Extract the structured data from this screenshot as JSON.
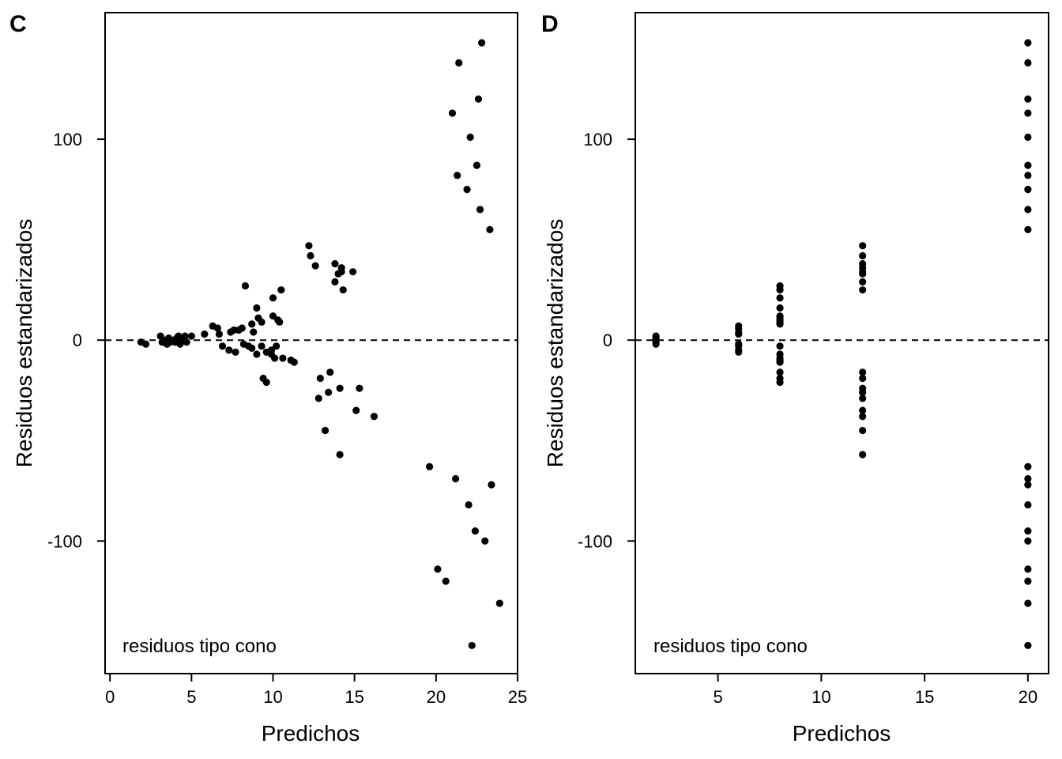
{
  "chart_data": [
    {
      "type": "scatter",
      "panel_label": "C",
      "xlabel": "Predichos",
      "ylabel": "Residuos estandarizados",
      "annotation": "residuos tipo cono",
      "xlim": [
        -0.3,
        25
      ],
      "ylim": [
        -166,
        163
      ],
      "xticks": [
        0,
        5,
        10,
        15,
        20,
        25
      ],
      "yticks": [
        -100,
        0,
        100
      ],
      "reference_line": {
        "y": 0,
        "style": "dashed"
      },
      "grid": false,
      "points": [
        {
          "x": 1.9,
          "y": -1
        },
        {
          "x": 2.2,
          "y": -2
        },
        {
          "x": 3.1,
          "y": 2
        },
        {
          "x": 3.2,
          "y": -1
        },
        {
          "x": 3.4,
          "y": 0
        },
        {
          "x": 3.5,
          "y": -2
        },
        {
          "x": 3.6,
          "y": 1
        },
        {
          "x": 3.7,
          "y": -1
        },
        {
          "x": 3.9,
          "y": 0
        },
        {
          "x": 4.0,
          "y": -1
        },
        {
          "x": 4.1,
          "y": 1
        },
        {
          "x": 4.2,
          "y": 2
        },
        {
          "x": 4.3,
          "y": -2
        },
        {
          "x": 4.5,
          "y": 0
        },
        {
          "x": 4.6,
          "y": 2
        },
        {
          "x": 4.7,
          "y": -1
        },
        {
          "x": 5.0,
          "y": 2
        },
        {
          "x": 5.8,
          "y": 3
        },
        {
          "x": 6.3,
          "y": 7
        },
        {
          "x": 6.6,
          "y": 6
        },
        {
          "x": 6.7,
          "y": 3
        },
        {
          "x": 6.9,
          "y": -3
        },
        {
          "x": 7.3,
          "y": -5
        },
        {
          "x": 7.4,
          "y": 4
        },
        {
          "x": 7.6,
          "y": 5
        },
        {
          "x": 7.7,
          "y": -6
        },
        {
          "x": 7.9,
          "y": 5
        },
        {
          "x": 8.1,
          "y": 6
        },
        {
          "x": 8.2,
          "y": -2
        },
        {
          "x": 8.3,
          "y": 27
        },
        {
          "x": 8.5,
          "y": -3
        },
        {
          "x": 8.7,
          "y": -4
        },
        {
          "x": 8.7,
          "y": 8
        },
        {
          "x": 8.8,
          "y": 4
        },
        {
          "x": 9.0,
          "y": 16
        },
        {
          "x": 9.0,
          "y": -7
        },
        {
          "x": 9.1,
          "y": 11
        },
        {
          "x": 9.3,
          "y": -3
        },
        {
          "x": 9.3,
          "y": 9
        },
        {
          "x": 9.4,
          "y": -19
        },
        {
          "x": 9.6,
          "y": -6
        },
        {
          "x": 9.6,
          "y": -21
        },
        {
          "x": 9.9,
          "y": -7
        },
        {
          "x": 9.9,
          "y": -5
        },
        {
          "x": 10.0,
          "y": 12
        },
        {
          "x": 10.0,
          "y": 21
        },
        {
          "x": 10.1,
          "y": -9
        },
        {
          "x": 10.2,
          "y": -3
        },
        {
          "x": 10.3,
          "y": 10
        },
        {
          "x": 10.4,
          "y": 9
        },
        {
          "x": 10.5,
          "y": 25
        },
        {
          "x": 10.6,
          "y": -9
        },
        {
          "x": 11.1,
          "y": -10
        },
        {
          "x": 11.3,
          "y": -11
        },
        {
          "x": 12.2,
          "y": 47
        },
        {
          "x": 12.3,
          "y": 42
        },
        {
          "x": 12.6,
          "y": 37
        },
        {
          "x": 12.8,
          "y": -29
        },
        {
          "x": 12.9,
          "y": -19
        },
        {
          "x": 13.2,
          "y": -45
        },
        {
          "x": 13.4,
          "y": -26
        },
        {
          "x": 13.5,
          "y": -16
        },
        {
          "x": 13.8,
          "y": 38
        },
        {
          "x": 13.8,
          "y": 29
        },
        {
          "x": 14.0,
          "y": 33
        },
        {
          "x": 14.1,
          "y": -24
        },
        {
          "x": 14.1,
          "y": -57
        },
        {
          "x": 14.2,
          "y": 36
        },
        {
          "x": 14.2,
          "y": 34
        },
        {
          "x": 14.3,
          "y": 25
        },
        {
          "x": 14.9,
          "y": 34
        },
        {
          "x": 15.1,
          "y": -35
        },
        {
          "x": 15.3,
          "y": -24
        },
        {
          "x": 16.2,
          "y": -38
        },
        {
          "x": 19.6,
          "y": -63
        },
        {
          "x": 20.1,
          "y": -114
        },
        {
          "x": 20.6,
          "y": -120
        },
        {
          "x": 21.0,
          "y": 113
        },
        {
          "x": 21.2,
          "y": -69
        },
        {
          "x": 21.3,
          "y": 82
        },
        {
          "x": 21.4,
          "y": 138
        },
        {
          "x": 21.9,
          "y": 75
        },
        {
          "x": 22.0,
          "y": -82
        },
        {
          "x": 22.1,
          "y": 101
        },
        {
          "x": 22.2,
          "y": -152
        },
        {
          "x": 22.4,
          "y": -95
        },
        {
          "x": 22.5,
          "y": 87
        },
        {
          "x": 22.6,
          "y": 120
        },
        {
          "x": 22.7,
          "y": 65
        },
        {
          "x": 22.8,
          "y": 148
        },
        {
          "x": 23.0,
          "y": -100
        },
        {
          "x": 23.3,
          "y": 55
        },
        {
          "x": 23.4,
          "y": -72
        },
        {
          "x": 23.9,
          "y": -131
        }
      ]
    },
    {
      "type": "scatter",
      "panel_label": "D",
      "xlabel": "Predichos",
      "ylabel": "Residuos estandarizados",
      "annotation": "residuos tipo cono",
      "xlim": [
        1.0,
        21.0
      ],
      "ylim": [
        -166,
        163
      ],
      "xticks": [
        5,
        10,
        15,
        20
      ],
      "yticks": [
        -100,
        0,
        100
      ],
      "reference_line": {
        "y": 0,
        "style": "dashed"
      },
      "grid": false,
      "points": [
        {
          "x": 2,
          "y": 2
        },
        {
          "x": 2,
          "y": 1
        },
        {
          "x": 2,
          "y": 0
        },
        {
          "x": 2,
          "y": -1
        },
        {
          "x": 2,
          "y": -2
        },
        {
          "x": 6,
          "y": 7
        },
        {
          "x": 6,
          "y": 6
        },
        {
          "x": 6,
          "y": 4
        },
        {
          "x": 6,
          "y": 3
        },
        {
          "x": 6,
          "y": -2
        },
        {
          "x": 6,
          "y": -3
        },
        {
          "x": 6,
          "y": -5
        },
        {
          "x": 6,
          "y": -6
        },
        {
          "x": 8,
          "y": 27
        },
        {
          "x": 8,
          "y": 25
        },
        {
          "x": 8,
          "y": 21
        },
        {
          "x": 8,
          "y": 16
        },
        {
          "x": 8,
          "y": 12
        },
        {
          "x": 8,
          "y": 11
        },
        {
          "x": 8,
          "y": 10
        },
        {
          "x": 8,
          "y": 9
        },
        {
          "x": 8,
          "y": 8
        },
        {
          "x": 8,
          "y": -3
        },
        {
          "x": 8,
          "y": -7
        },
        {
          "x": 8,
          "y": -9
        },
        {
          "x": 8,
          "y": -10
        },
        {
          "x": 8,
          "y": -11
        },
        {
          "x": 8,
          "y": -16
        },
        {
          "x": 8,
          "y": -19
        },
        {
          "x": 8,
          "y": -21
        },
        {
          "x": 12,
          "y": 47
        },
        {
          "x": 12,
          "y": 42
        },
        {
          "x": 12,
          "y": 38
        },
        {
          "x": 12,
          "y": 36
        },
        {
          "x": 12,
          "y": 34
        },
        {
          "x": 12,
          "y": 33
        },
        {
          "x": 12,
          "y": 29
        },
        {
          "x": 12,
          "y": 25
        },
        {
          "x": 12,
          "y": -16
        },
        {
          "x": 12,
          "y": -19
        },
        {
          "x": 12,
          "y": -24
        },
        {
          "x": 12,
          "y": -26
        },
        {
          "x": 12,
          "y": -29
        },
        {
          "x": 12,
          "y": -35
        },
        {
          "x": 12,
          "y": -38
        },
        {
          "x": 12,
          "y": -45
        },
        {
          "x": 12,
          "y": -57
        },
        {
          "x": 20,
          "y": 148
        },
        {
          "x": 20,
          "y": 138
        },
        {
          "x": 20,
          "y": 120
        },
        {
          "x": 20,
          "y": 113
        },
        {
          "x": 20,
          "y": 101
        },
        {
          "x": 20,
          "y": 87
        },
        {
          "x": 20,
          "y": 82
        },
        {
          "x": 20,
          "y": 75
        },
        {
          "x": 20,
          "y": 65
        },
        {
          "x": 20,
          "y": 55
        },
        {
          "x": 20,
          "y": -63
        },
        {
          "x": 20,
          "y": -69
        },
        {
          "x": 20,
          "y": -72
        },
        {
          "x": 20,
          "y": -82
        },
        {
          "x": 20,
          "y": -95
        },
        {
          "x": 20,
          "y": -100
        },
        {
          "x": 20,
          "y": -114
        },
        {
          "x": 20,
          "y": -120
        },
        {
          "x": 20,
          "y": -131
        },
        {
          "x": 20,
          "y": -152
        }
      ]
    }
  ]
}
